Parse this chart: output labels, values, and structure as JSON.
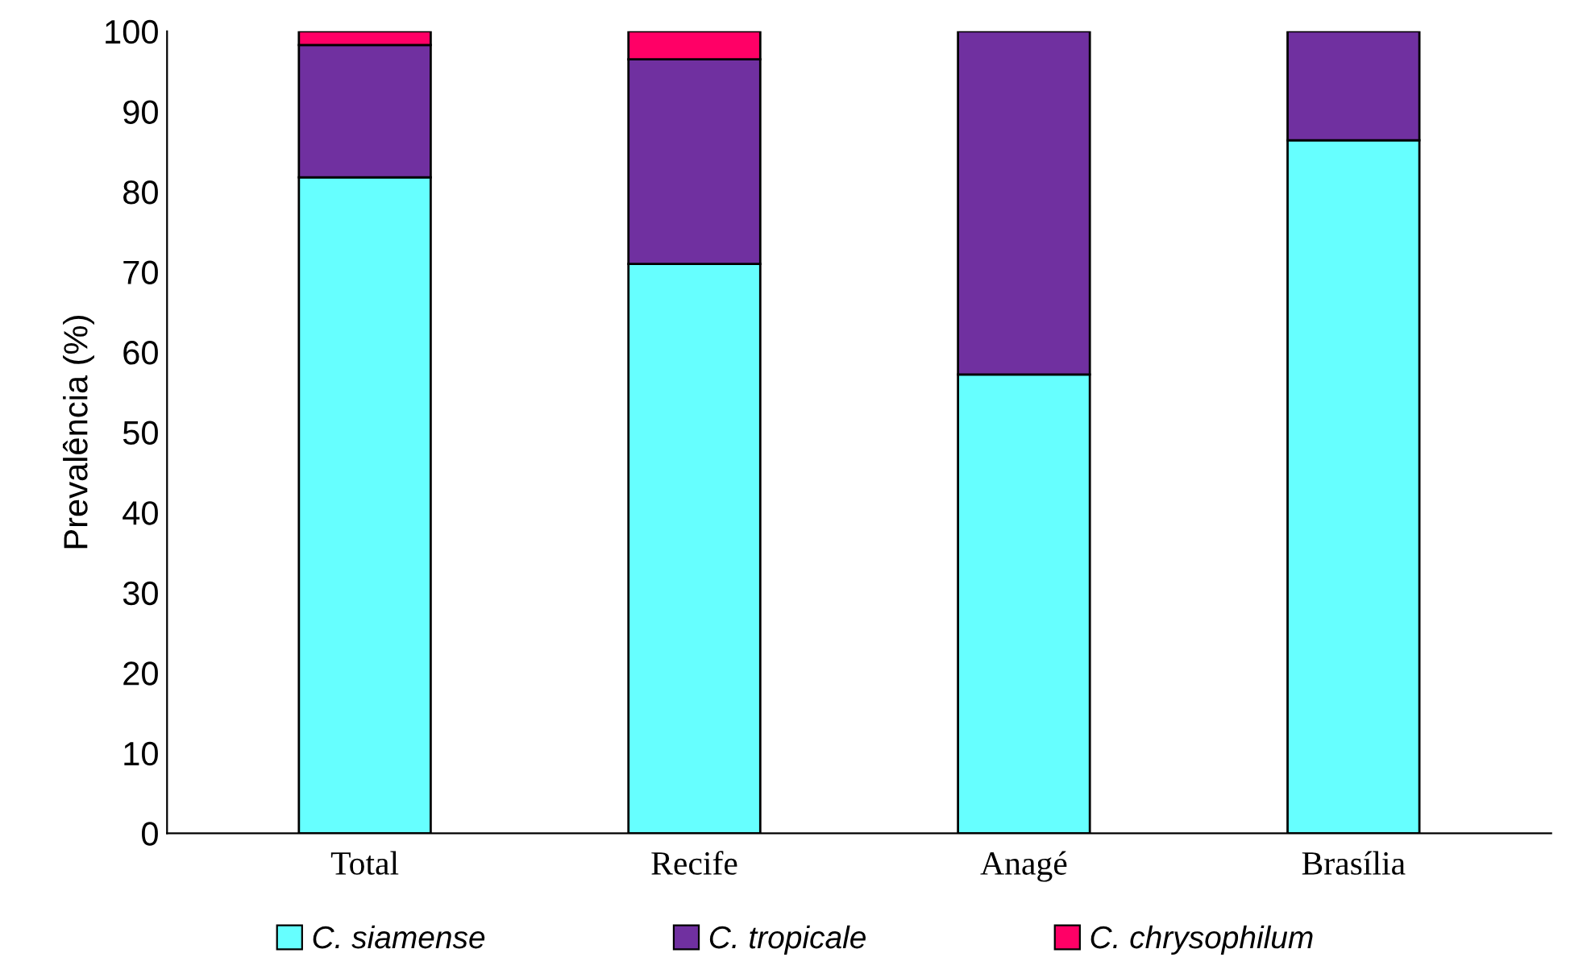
{
  "chart_data": {
    "type": "bar",
    "stacked": true,
    "ylabel": "Prevalência (%)",
    "categories": [
      "Total",
      "Recife",
      "Anagé",
      "Brasília"
    ],
    "series": [
      {
        "name": "C. siamense",
        "color": "#66ffff",
        "values": [
          81.8,
          71.0,
          57.2,
          86.4
        ]
      },
      {
        "name": "C. tropicale",
        "color": "#7030a0",
        "values": [
          16.5,
          25.5,
          42.8,
          13.6
        ]
      },
      {
        "name": "C. chrysophilum",
        "color": "#ff0066",
        "values": [
          1.7,
          3.5,
          null,
          null
        ]
      }
    ],
    "ylim": [
      0,
      100
    ],
    "yticks": [
      0,
      10,
      20,
      30,
      40,
      50,
      60,
      70,
      80,
      90,
      100
    ],
    "grid": false,
    "legend": "bottom"
  }
}
